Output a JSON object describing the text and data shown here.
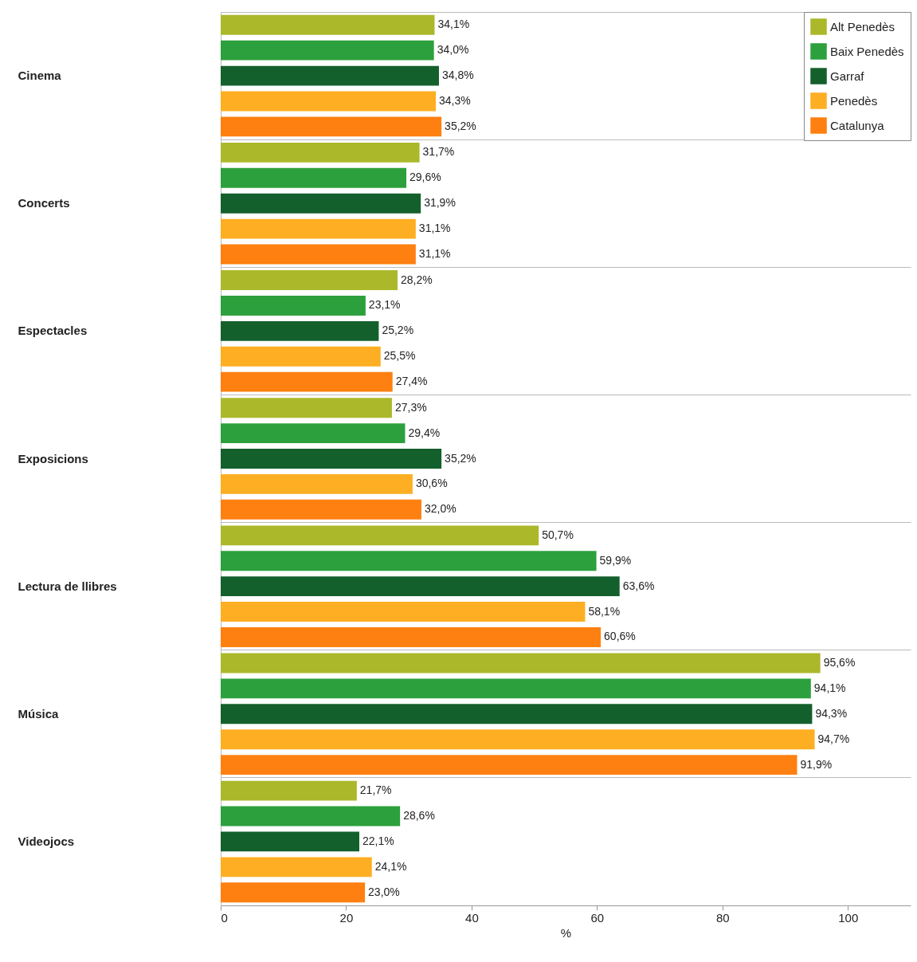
{
  "chart_data": {
    "type": "bar",
    "orientation": "horizontal",
    "categories": [
      "Cinema",
      "Concerts",
      "Espectacles",
      "Exposicions",
      "Lectura de llibres",
      "Música",
      "Videojocs"
    ],
    "series": [
      {
        "name": "Alt Penedès",
        "color": "#abb82a",
        "values": [
          34.1,
          31.7,
          28.2,
          27.3,
          50.7,
          95.6,
          21.7
        ],
        "value_labels": [
          "34,1%",
          "31,7%",
          "28,2%",
          "27,3%",
          "50,7%",
          "95,6%",
          "21,7%"
        ]
      },
      {
        "name": "Baix Penedès",
        "color": "#2ca03c",
        "values": [
          34.0,
          29.6,
          23.1,
          29.4,
          59.9,
          94.1,
          28.6
        ],
        "value_labels": [
          "34,0%",
          "29,6%",
          "23,1%",
          "29,4%",
          "59,9%",
          "94,1%",
          "28,6%"
        ]
      },
      {
        "name": "Garraf",
        "color": "#14602c",
        "values": [
          34.8,
          31.9,
          25.2,
          35.2,
          63.6,
          94.3,
          22.1
        ],
        "value_labels": [
          "34,8%",
          "31,9%",
          "25,2%",
          "35,2%",
          "63,6%",
          "94,3%",
          "22,1%"
        ]
      },
      {
        "name": "Penedès",
        "color": "#fdae22",
        "values": [
          34.3,
          31.1,
          25.5,
          30.6,
          58.1,
          94.7,
          24.1
        ],
        "value_labels": [
          "34,3%",
          "31,1%",
          "25,5%",
          "30,6%",
          "58,1%",
          "94,7%",
          "24,1%"
        ]
      },
      {
        "name": "Catalunya",
        "color": "#fe8010",
        "values": [
          35.2,
          31.1,
          27.4,
          32.0,
          60.6,
          91.9,
          23.0
        ],
        "value_labels": [
          "35,2%",
          "31,1%",
          "27,4%",
          "32,0%",
          "60,6%",
          "91,9%",
          "23,0%"
        ]
      }
    ],
    "xlim": [
      0,
      110
    ],
    "xticks": [
      0,
      20,
      40,
      60,
      80,
      100
    ],
    "xlabel": "%",
    "grid": "y",
    "legend": "top right"
  }
}
